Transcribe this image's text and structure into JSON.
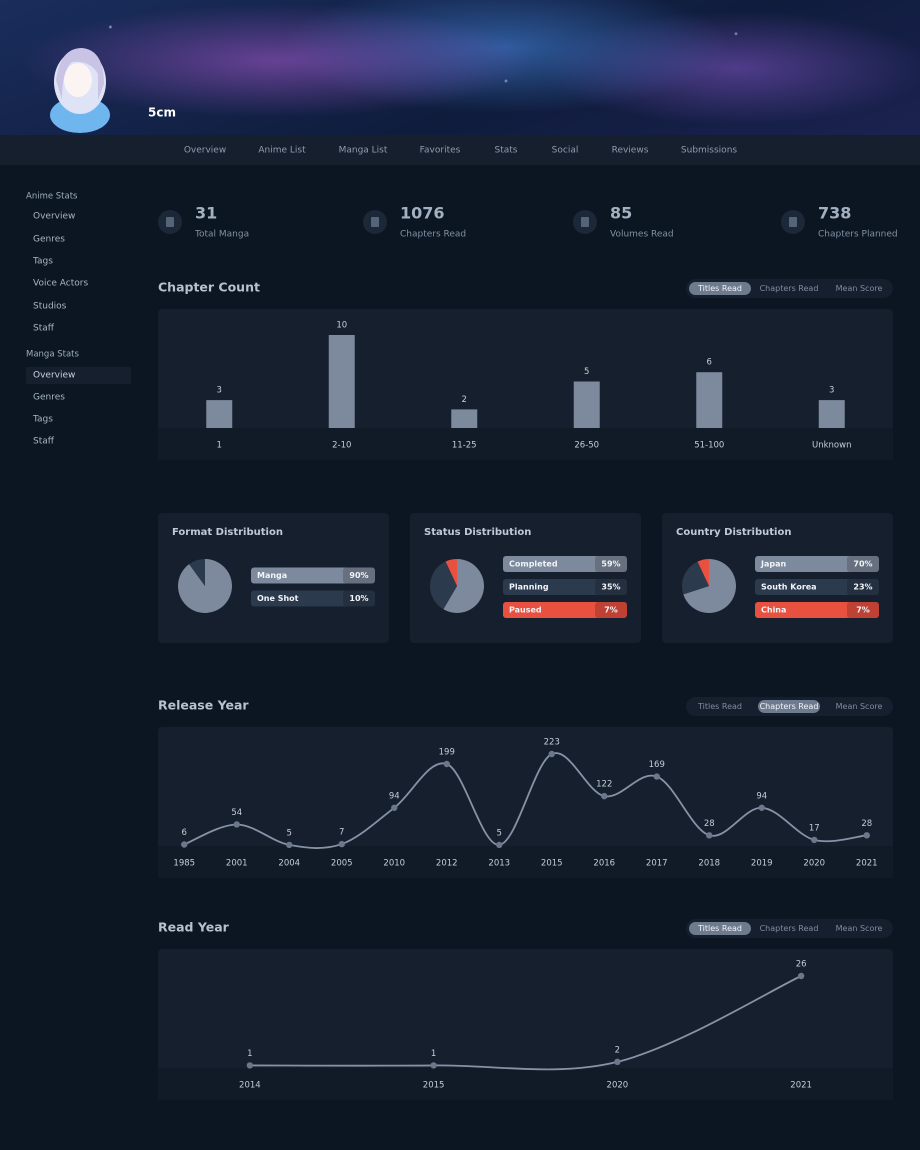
{
  "profile": {
    "name": "5cm"
  },
  "nav": [
    "Overview",
    "Anime List",
    "Manga List",
    "Favorites",
    "Stats",
    "Social",
    "Reviews",
    "Submissions"
  ],
  "sidebar": {
    "anime_heading": "Anime Stats",
    "anime_links": [
      "Overview",
      "Genres",
      "Tags",
      "Voice Actors",
      "Studios",
      "Staff"
    ],
    "manga_heading": "Manga Stats",
    "manga_links": [
      "Overview",
      "Genres",
      "Tags",
      "Staff"
    ],
    "active_manga_link": 0
  },
  "summary": [
    {
      "value": 31,
      "label": "Total Manga"
    },
    {
      "value": 1076,
      "label": "Chapters Read"
    },
    {
      "value": 85,
      "label": "Volumes Read"
    },
    {
      "value": 738,
      "label": "Chapters Planned"
    }
  ],
  "chart_data": [
    {
      "type": "bar",
      "title": "Chapter Count",
      "tabs": [
        "Titles Read",
        "Chapters Read",
        "Mean Score"
      ],
      "active_tab": 0,
      "categories": [
        "1",
        "2-10",
        "11-25",
        "26-50",
        "51-100",
        "Unknown"
      ],
      "values": [
        3,
        10,
        2,
        5,
        6,
        3
      ],
      "color": "#7d899c"
    },
    {
      "type": "pie",
      "title": "Format Distribution",
      "categories": [
        "Manga",
        "One Shot"
      ],
      "values": [
        90,
        10
      ],
      "value_labels": [
        "90%",
        "10%"
      ],
      "colors": [
        "#7d899c",
        "#2c3a4e"
      ]
    },
    {
      "type": "pie",
      "title": "Status Distribution",
      "categories": [
        "Completed",
        "Planning",
        "Paused"
      ],
      "values": [
        59,
        35,
        7
      ],
      "value_labels": [
        "59%",
        "35%",
        "7%"
      ],
      "colors": [
        "#7d899c",
        "#2c3a4e",
        "#e8503f"
      ]
    },
    {
      "type": "pie",
      "title": "Country Distribution",
      "categories": [
        "Japan",
        "South Korea",
        "China"
      ],
      "values": [
        70,
        23,
        7
      ],
      "value_labels": [
        "70%",
        "23%",
        "7%"
      ],
      "colors": [
        "#7d899c",
        "#2c3a4e",
        "#e8503f"
      ]
    },
    {
      "type": "line",
      "title": "Release Year",
      "tabs": [
        "Titles Read",
        "Chapters Read",
        "Mean Score"
      ],
      "active_tab": 1,
      "categories": [
        "1985",
        "2001",
        "2004",
        "2005",
        "2010",
        "2012",
        "2013",
        "2015",
        "2016",
        "2017",
        "2018",
        "2019",
        "2020",
        "2021"
      ],
      "values": [
        6,
        54,
        5,
        7,
        94,
        199,
        5,
        223,
        122,
        169,
        28,
        94,
        17,
        28
      ],
      "color": "#8692a5"
    },
    {
      "type": "line",
      "title": "Read Year",
      "tabs": [
        "Titles Read",
        "Chapters Read",
        "Mean Score"
      ],
      "active_tab": 0,
      "categories": [
        "2014",
        "2015",
        "2020",
        "2021"
      ],
      "values": [
        1,
        1,
        2,
        26
      ],
      "color": "#8692a5"
    }
  ]
}
